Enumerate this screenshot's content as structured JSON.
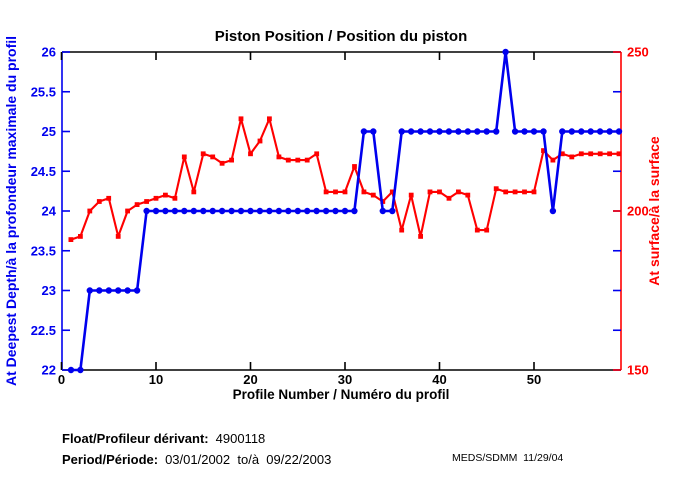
{
  "title": "Piston Position / Position du piston",
  "chart_data": {
    "type": "line",
    "title": "Piston Position / Position du piston",
    "xlabel": "Profile Number / Numéro du profil",
    "x_ticks": [
      0,
      10,
      20,
      30,
      40,
      50
    ],
    "xlim": [
      0,
      59.2
    ],
    "grid": false,
    "legend": "none",
    "x": [
      1,
      2,
      3,
      4,
      5,
      6,
      7,
      8,
      9,
      10,
      11,
      12,
      13,
      14,
      15,
      16,
      17,
      18,
      19,
      20,
      21,
      22,
      23,
      24,
      25,
      26,
      27,
      28,
      29,
      30,
      31,
      32,
      33,
      34,
      35,
      36,
      37,
      38,
      39,
      40,
      41,
      42,
      43,
      44,
      45,
      46,
      47,
      48,
      49,
      50,
      51,
      52,
      53,
      54,
      55,
      56,
      57,
      58,
      59
    ],
    "left_axis": {
      "label": "At Deepest Depth/à la profondeur maximale du profil",
      "ticks": [
        22,
        22.5,
        23,
        23.5,
        24,
        24.5,
        25,
        25.5,
        26
      ],
      "lim": [
        22,
        26
      ],
      "color": "#0000EE"
    },
    "right_axis": {
      "label": "At surface/à la surface",
      "ticks": [
        150,
        200,
        250
      ],
      "lim": [
        150,
        250
      ],
      "color": "#FF0000"
    },
    "series": [
      {
        "name": "At Deepest Depth/à la profondeur maximale du profil",
        "axis": "left",
        "color": "#0000EE",
        "marker": "circle",
        "values": [
          22,
          22,
          23,
          23,
          23,
          23,
          23,
          23,
          24,
          24,
          24,
          24,
          24,
          24,
          24,
          24,
          24,
          24,
          24,
          24,
          24,
          24,
          24,
          24,
          24,
          24,
          24,
          24,
          24,
          24,
          24,
          25,
          25,
          24,
          24,
          25,
          25,
          25,
          25,
          25,
          25,
          25,
          25,
          25,
          25,
          25,
          26,
          25,
          25,
          25,
          25,
          24,
          25,
          25,
          25,
          25,
          25,
          25,
          25
        ]
      },
      {
        "name": "At surface/à la surface",
        "axis": "right",
        "color": "#FF0000",
        "marker": "square",
        "values": [
          191,
          192,
          200,
          203,
          204,
          192,
          200,
          202,
          203,
          204,
          205,
          204,
          217,
          206,
          218,
          217,
          215,
          216,
          229,
          218,
          222,
          229,
          217,
          216,
          216,
          216,
          218,
          206,
          206,
          206,
          214,
          206,
          205,
          203,
          206,
          194,
          205,
          192,
          206,
          206,
          204,
          206,
          205,
          194,
          194,
          207,
          206,
          206,
          206,
          206,
          219,
          216,
          218,
          217,
          218,
          218,
          218,
          218,
          218
        ]
      }
    ]
  },
  "footer": {
    "float_label": "Float/Profileur dérivant:",
    "float_value": "4900118",
    "period_label": "Period/Période:",
    "period_value": "03/01/2002  to/à  09/22/2003",
    "credit": "MEDS/SDMM  11/29/04"
  }
}
